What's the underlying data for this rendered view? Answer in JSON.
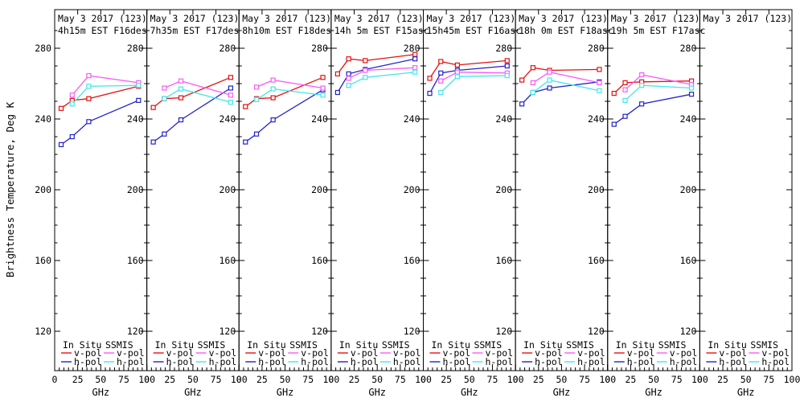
{
  "figure": {
    "ylabel": "Brightness Temperature, Deg K",
    "xlabel": "GHz",
    "colors": {
      "in_situ_v": "#e61010",
      "in_situ_h": "#2323c8",
      "ssmis_v": "#f75cf7",
      "ssmis_h": "#45e6e8",
      "axis": "#000000",
      "background": "#ffffff"
    },
    "legend": {
      "col1_header": "In Situ",
      "col2_header": "SSMIS",
      "vpol_label": "v-pol",
      "hpol_label": "h-pol"
    }
  },
  "chart_data": {
    "type": "line",
    "marker": "open-square",
    "xlabel": "GHz",
    "ylabel": "Brightness Temperature, Deg K",
    "x_ticks": [
      0,
      25,
      50,
      75,
      100
    ],
    "x_minor_step": 5,
    "y_ticks": [
      120,
      160,
      200,
      240,
      280
    ],
    "y_minor_step": 10,
    "xlim": [
      0,
      100
    ],
    "ylim": [
      98,
      302
    ],
    "grid": false,
    "legend_position": "bottom-inside-each-panel",
    "in_situ_x": [
      7,
      19,
      37,
      91
    ],
    "ssmis_x": [
      19,
      37,
      91
    ],
    "panels": [
      {
        "title": "May 3 2017 (123)",
        "subtitle": "4h15m EST F16des",
        "series": [
          {
            "name": "In Situ v-pol",
            "color_key": "in_situ_v",
            "x": [
              7,
              19,
              37,
              91
            ],
            "y": [
              246,
              250.5,
              251.5,
              258.5
            ]
          },
          {
            "name": "In Situ h-pol",
            "color_key": "in_situ_h",
            "x": [
              7,
              19,
              37,
              91
            ],
            "y": [
              225.5,
              230,
              238.5,
              250.5
            ]
          },
          {
            "name": "SSMIS v-pol",
            "color_key": "ssmis_v",
            "x": [
              19,
              37,
              91
            ],
            "y": [
              253.5,
              264.5,
              260.5
            ]
          },
          {
            "name": "SSMIS h-pol",
            "color_key": "ssmis_h",
            "x": [
              19,
              37,
              91
            ],
            "y": [
              248.5,
              258.5,
              259
            ]
          }
        ]
      },
      {
        "title": "May 3 2017 (123)",
        "subtitle": "7h35m EST F17des",
        "series": [
          {
            "name": "In Situ v-pol",
            "color_key": "in_situ_v",
            "x": [
              7,
              19,
              37,
              91
            ],
            "y": [
              246.5,
              251.5,
              252,
              263.5
            ]
          },
          {
            "name": "In Situ h-pol",
            "color_key": "in_situ_h",
            "x": [
              7,
              19,
              37,
              91
            ],
            "y": [
              227,
              231.5,
              239.5,
              257.5
            ]
          },
          {
            "name": "SSMIS v-pol",
            "color_key": "ssmis_v",
            "x": [
              19,
              37,
              91
            ],
            "y": [
              257.5,
              261.5,
              253.5
            ]
          },
          {
            "name": "SSMIS h-pol",
            "color_key": "ssmis_h",
            "x": [
              19,
              37,
              91
            ],
            "y": [
              251.5,
              257,
              249.5
            ]
          }
        ]
      },
      {
        "title": "May 3 2017 (123)",
        "subtitle": "8h10m EST F18des",
        "series": [
          {
            "name": "In Situ v-pol",
            "color_key": "in_situ_v",
            "x": [
              7,
              19,
              37,
              91
            ],
            "y": [
              247,
              251.5,
              252,
              263.5
            ]
          },
          {
            "name": "In Situ h-pol",
            "color_key": "in_situ_h",
            "x": [
              7,
              19,
              37,
              91
            ],
            "y": [
              227,
              231.5,
              239.5,
              256.5
            ]
          },
          {
            "name": "SSMIS v-pol",
            "color_key": "ssmis_v",
            "x": [
              19,
              37,
              91
            ],
            "y": [
              258,
              262,
              257.5
            ]
          },
          {
            "name": "SSMIS h-pol",
            "color_key": "ssmis_h",
            "x": [
              19,
              37,
              91
            ],
            "y": [
              251,
              257,
              253.5
            ]
          }
        ]
      },
      {
        "title": "May 3 2017 (123)",
        "subtitle": "14h 5m EST F15asc",
        "series": [
          {
            "name": "In Situ v-pol",
            "color_key": "in_situ_v",
            "x": [
              7,
              19,
              37,
              91
            ],
            "y": [
              265.5,
              274,
              273,
              276.5
            ]
          },
          {
            "name": "In Situ h-pol",
            "color_key": "in_situ_h",
            "x": [
              7,
              19,
              37,
              91
            ],
            "y": [
              255,
              265.5,
              268,
              274
            ]
          },
          {
            "name": "SSMIS v-pol",
            "color_key": "ssmis_v",
            "x": [
              19,
              37,
              91
            ],
            "y": [
              263,
              267.5,
              269
            ]
          },
          {
            "name": "SSMIS h-pol",
            "color_key": "ssmis_h",
            "x": [
              19,
              37,
              91
            ],
            "y": [
              259,
              263.5,
              266.5
            ]
          }
        ]
      },
      {
        "title": "May 3 2017 (123)",
        "subtitle": "15h45m EST F16asc",
        "series": [
          {
            "name": "In Situ v-pol",
            "color_key": "in_situ_v",
            "x": [
              7,
              19,
              37,
              91
            ],
            "y": [
              263,
              272.5,
              270.5,
              273
            ]
          },
          {
            "name": "In Situ h-pol",
            "color_key": "in_situ_h",
            "x": [
              7,
              19,
              37,
              91
            ],
            "y": [
              254.5,
              266,
              267.5,
              270
            ]
          },
          {
            "name": "SSMIS v-pol",
            "color_key": "ssmis_v",
            "x": [
              19,
              37,
              91
            ],
            "y": [
              261.5,
              266.5,
              266
            ]
          },
          {
            "name": "SSMIS h-pol",
            "color_key": "ssmis_h",
            "x": [
              19,
              37,
              91
            ],
            "y": [
              255,
              264,
              264.5
            ]
          }
        ]
      },
      {
        "title": "May 3 2017 (123)",
        "subtitle": "18h 0m EST F18asc",
        "series": [
          {
            "name": "In Situ v-pol",
            "color_key": "in_situ_v",
            "x": [
              7,
              19,
              37,
              91
            ],
            "y": [
              262,
              269,
              267.5,
              268
            ]
          },
          {
            "name": "In Situ h-pol",
            "color_key": "in_situ_h",
            "x": [
              7,
              19,
              37,
              91
            ],
            "y": [
              248.5,
              255,
              257.5,
              261
            ]
          },
          {
            "name": "SSMIS v-pol",
            "color_key": "ssmis_v",
            "x": [
              19,
              37,
              91
            ],
            "y": [
              260.5,
              266.5,
              260.5
            ]
          },
          {
            "name": "SSMIS h-pol",
            "color_key": "ssmis_h",
            "x": [
              19,
              37,
              91
            ],
            "y": [
              255,
              262,
              256
            ]
          }
        ]
      },
      {
        "title": "May 3 2017 (123)",
        "subtitle": "19h 5m EST F17asc",
        "series": [
          {
            "name": "In Situ v-pol",
            "color_key": "in_situ_v",
            "x": [
              7,
              19,
              37,
              91
            ],
            "y": [
              254.5,
              260.5,
              261,
              261.5
            ]
          },
          {
            "name": "In Situ h-pol",
            "color_key": "in_situ_h",
            "x": [
              7,
              19,
              37,
              91
            ],
            "y": [
              237,
              241.5,
              248.5,
              254
            ]
          },
          {
            "name": "SSMIS v-pol",
            "color_key": "ssmis_v",
            "x": [
              19,
              37,
              91
            ],
            "y": [
              256.5,
              265,
              259.5
            ]
          },
          {
            "name": "SSMIS h-pol",
            "color_key": "ssmis_h",
            "x": [
              19,
              37,
              91
            ],
            "y": [
              250.5,
              259,
              257.5
            ]
          }
        ]
      },
      {
        "title": "May 3 2017 (123)",
        "subtitle": "",
        "series": []
      }
    ]
  }
}
